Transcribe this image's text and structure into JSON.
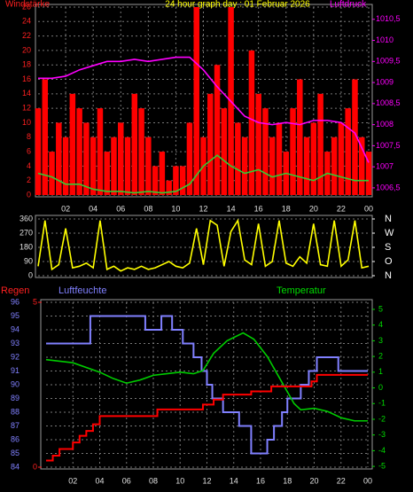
{
  "chart_data": [
    {
      "type": "combo",
      "title": "24 hour graph day : 01 Februar 2026",
      "y_label": "Windstärke",
      "y2_label": "Luftdruck",
      "grid": true,
      "xlim": [
        0,
        24
      ],
      "xticks": [
        {
          "value": 2,
          "label": "02"
        },
        {
          "value": 4,
          "label": "04"
        },
        {
          "value": 6,
          "label": "06"
        },
        {
          "value": 8,
          "label": "08"
        },
        10,
        12,
        14,
        16,
        18,
        20,
        22,
        {
          "value": 24,
          "label": "00"
        }
      ],
      "ylim": [
        0,
        26
      ],
      "yticks": [
        0,
        2,
        4,
        6,
        8,
        10,
        12,
        14,
        16,
        18,
        20,
        22,
        24,
        26
      ],
      "y2lim": [
        1006.33,
        1010.79
      ],
      "y2ticks": [
        {
          "value": 1006.5,
          "label": "1006,5"
        },
        1007,
        {
          "value": 1007.5,
          "label": "1007,5"
        },
        1008,
        {
          "value": 1008.5,
          "label": "1008,5"
        },
        1009,
        {
          "value": 1009.5,
          "label": "1009,5"
        },
        1010,
        {
          "value": 1010.5,
          "label": "1010,5"
        }
      ],
      "series": [
        {
          "type": "bar",
          "color": "#ff0000",
          "x": [
            0,
            0.5,
            1,
            1.5,
            2,
            2.5,
            3,
            3.5,
            4,
            4.5,
            5,
            5.5,
            6,
            6.5,
            7,
            7.5,
            8,
            8.5,
            9,
            9.5,
            10,
            10.5,
            11,
            11.5,
            12,
            12.5,
            13,
            13.5,
            14,
            14.5,
            15,
            15.5,
            16,
            16.5,
            17,
            17.5,
            18,
            18.5,
            19,
            19.5,
            20,
            20.5,
            21,
            21.5,
            22,
            22.5,
            23,
            23.5,
            24
          ],
          "values": [
            12,
            16,
            6,
            10,
            8,
            14,
            12,
            10,
            8,
            12,
            6,
            8,
            10,
            8,
            14,
            12,
            8,
            4,
            6,
            2,
            4,
            4,
            10,
            26,
            8,
            14,
            18,
            12,
            26,
            10,
            8,
            20,
            14,
            12,
            8,
            10,
            6,
            12,
            16,
            8,
            10,
            14,
            6,
            8,
            10,
            12,
            16,
            8,
            6
          ]
        },
        {
          "type": "line",
          "color": "#33cc33",
          "x": [
            0,
            1,
            2,
            3,
            4,
            5,
            6,
            7,
            8,
            9,
            10,
            11,
            12,
            13,
            14,
            15,
            16,
            17,
            18,
            19,
            20,
            21,
            22,
            23,
            24
          ],
          "values": [
            3,
            2.5,
            1.5,
            1.5,
            0.8,
            0.5,
            0.5,
            0.3,
            0.5,
            0.3,
            0.5,
            1.5,
            4,
            5.5,
            4,
            3,
            3.5,
            2.5,
            3,
            2.5,
            2,
            3,
            2.5,
            2,
            2
          ]
        },
        {
          "type": "line",
          "color": "#ff00ff",
          "axis": "y2",
          "x": [
            0,
            1,
            2,
            3,
            4,
            5,
            6,
            7,
            8,
            9,
            10,
            11,
            12,
            13,
            14,
            15,
            16,
            17,
            18,
            19,
            20,
            21,
            22,
            23,
            24
          ],
          "values": [
            1009.1,
            1009.1,
            1009.15,
            1009.3,
            1009.4,
            1009.5,
            1009.5,
            1009.55,
            1009.5,
            1009.55,
            1009.6,
            1009.6,
            1009.3,
            1008.9,
            1008.55,
            1008.2,
            1008.05,
            1008.0,
            1008.05,
            1008.0,
            1008.1,
            1008.1,
            1008.05,
            1007.8,
            1007.1
          ]
        }
      ]
    },
    {
      "type": "line",
      "xlim": [
        0,
        24
      ],
      "ylim": [
        0,
        360
      ],
      "yticks": [
        0,
        90,
        180,
        270,
        360
      ],
      "y2lim": [
        0,
        360
      ],
      "y2ticks": [
        {
          "value": 360,
          "label": "N"
        },
        {
          "value": 270,
          "label": "W"
        },
        {
          "value": 180,
          "label": "S"
        },
        {
          "value": 90,
          "label": "O"
        },
        {
          "value": 0,
          "label": "N"
        }
      ],
      "grid": true,
      "series": [
        {
          "type": "line",
          "color": "#ffff00",
          "x": [
            0,
            0.5,
            1,
            1.5,
            2,
            2.5,
            3,
            3.5,
            4,
            4.5,
            5,
            5.5,
            6,
            6.5,
            7,
            7.5,
            8,
            8.5,
            9,
            9.5,
            10,
            10.5,
            11,
            11.5,
            12,
            12.5,
            13,
            13.5,
            14,
            14.5,
            15,
            15.5,
            16,
            16.5,
            17,
            17.5,
            18,
            18.5,
            19,
            19.5,
            20,
            20.5,
            21,
            21.5,
            22,
            22.5,
            23,
            23.5,
            24
          ],
          "values": [
            60,
            350,
            40,
            70,
            300,
            50,
            60,
            80,
            50,
            350,
            40,
            60,
            30,
            50,
            40,
            60,
            40,
            50,
            70,
            90,
            60,
            50,
            80,
            300,
            70,
            350,
            320,
            60,
            280,
            350,
            100,
            70,
            330,
            60,
            90,
            350,
            80,
            60,
            120,
            80,
            330,
            70,
            60,
            350,
            60,
            100,
            350,
            50,
            60
          ]
        }
      ]
    },
    {
      "type": "combo",
      "y3_label": "Regen",
      "y_label": "Luftfeuchte",
      "y2_label": "Temperatur",
      "grid": true,
      "xlim": [
        0,
        24
      ],
      "xticks": [
        {
          "value": 2,
          "label": "02"
        },
        {
          "value": 4,
          "label": "04"
        },
        {
          "value": 6,
          "label": "06"
        },
        {
          "value": 8,
          "label": "08"
        },
        10,
        12,
        14,
        16,
        18,
        20,
        22,
        {
          "value": 24,
          "label": "00"
        }
      ],
      "ylim": [
        84,
        96
      ],
      "yticks": [
        84,
        85,
        86,
        87,
        88,
        89,
        90,
        91,
        92,
        93,
        94,
        95,
        96
      ],
      "y2lim": [
        -5.05,
        5.45
      ],
      "y2ticks": [
        -5,
        -4,
        -3,
        -2,
        -1,
        0,
        1,
        2,
        3,
        4,
        5
      ],
      "y3lim": [
        0,
        5
      ],
      "y3ticks": [
        0,
        5
      ],
      "series": [
        {
          "type": "step",
          "color": "#8080ff",
          "x": [
            0,
            3.3,
            7.4,
            8.6,
            9.4,
            10.2,
            11,
            11.6,
            12,
            12.4,
            13.2,
            14.4,
            15.3,
            16.5,
            17,
            17.6,
            18,
            19,
            19.6,
            20.2,
            21.8,
            24
          ],
          "values": [
            93,
            95,
            94,
            95,
            94,
            93,
            92,
            91,
            90,
            89,
            88,
            87,
            85,
            86,
            87,
            88,
            89,
            90,
            91,
            92,
            91,
            91
          ]
        },
        {
          "type": "line",
          "color": "#00cc00",
          "axis": "y2",
          "x": [
            0,
            2,
            4,
            5,
            6,
            7,
            8,
            9,
            10,
            11,
            11.7,
            12.5,
            13.5,
            14.7,
            15.5,
            16.5,
            17.5,
            18.5,
            19,
            20,
            21,
            22,
            23,
            24
          ],
          "values": [
            1.8,
            1.6,
            1.0,
            0.6,
            0.3,
            0.5,
            0.8,
            0.9,
            1.0,
            0.9,
            1.1,
            2.2,
            3.0,
            3.5,
            3.1,
            2.0,
            0.5,
            -1.0,
            -1.4,
            -1.3,
            -1.5,
            -1.9,
            -2.1,
            -2.1
          ]
        },
        {
          "type": "step",
          "color": "#ff0000",
          "axis": "y3",
          "x": [
            0,
            0.5,
            1,
            2,
            2.5,
            3,
            3.5,
            4,
            8.3,
            11.7,
            12.5,
            13.2,
            15.3,
            16.8,
            19.8,
            20.2,
            24
          ],
          "values": [
            0.2,
            0.35,
            0.55,
            0.75,
            0.95,
            1.1,
            1.3,
            1.55,
            1.75,
            1.9,
            2.05,
            2.2,
            2.3,
            2.45,
            2.6,
            2.8,
            2.8
          ]
        }
      ]
    }
  ]
}
